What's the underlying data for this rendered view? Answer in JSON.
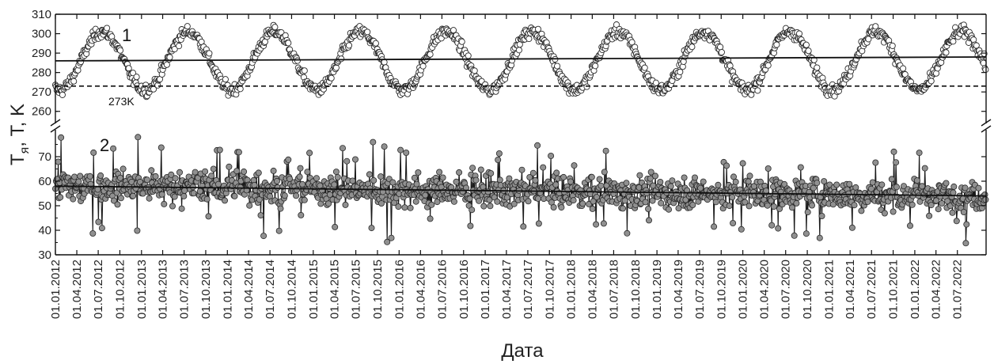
{
  "chart_data": {
    "type": "scatter",
    "xlabel": "Дата",
    "ylabel": "T",
    "ylabel_subscript": "я",
    "ylabel_rest": ", T, K",
    "x_range": [
      "2012-01-01",
      "2022-10-31"
    ],
    "x_ticks": [
      "01.01.2012",
      "01.04.2012",
      "01.07.2012",
      "01.10.2012",
      "01.01.2013",
      "01.04.2013",
      "01.07.2013",
      "01.10.2013",
      "01.01.2014",
      "01.04.2014",
      "01.07.2014",
      "01.10.2014",
      "01.01.2015",
      "01.04.2015",
      "01.07.2015",
      "01.10.2015",
      "01.01.2016",
      "01.04.2016",
      "01.07.2016",
      "01.10.2016",
      "01.01.2017",
      "01.04.2017",
      "01.07.2017",
      "01.10.2017",
      "01.01.2018",
      "01.04.2018",
      "01.07.2018",
      "01.10.2018",
      "01.01.2019",
      "01.04.2019",
      "01.07.2019",
      "01.10.2019",
      "01.01.2020",
      "01.04.2020",
      "01.07.2020",
      "01.10.2020",
      "01.01.2021",
      "01.04.2021",
      "01.07.2021",
      "01.10.2021",
      "01.01.2022",
      "01.04.2022",
      "01.07.2022"
    ],
    "upper_panel": {
      "ylim": [
        255,
        310
      ],
      "y_ticks": [
        260,
        270,
        280,
        290,
        300,
        310
      ],
      "reference_line": {
        "y": 273,
        "label": "273K",
        "style": "dashed"
      },
      "series": [
        {
          "label": "1",
          "marker": "open-circle",
          "mean": 286,
          "amplitude": 15,
          "peak_day_of_year": 200,
          "noise": 2.5,
          "trend_line": {
            "start": [
              "2012-01-01",
              286
            ],
            "end": [
              "2022-10-31",
              288
            ]
          }
        }
      ]
    },
    "lower_panel": {
      "ylim": [
        30,
        80
      ],
      "y_ticks": [
        30,
        40,
        50,
        60,
        70
      ],
      "series": [
        {
          "label": "2",
          "marker": "filled-circle",
          "color": "#909090",
          "mean": 56,
          "range": [
            34,
            79
          ],
          "trend_line": {
            "start": [
              "2012-01-01",
              58
            ],
            "end": [
              "2022-10-31",
              54
            ]
          }
        }
      ]
    },
    "grid": false,
    "axis_break": true
  }
}
